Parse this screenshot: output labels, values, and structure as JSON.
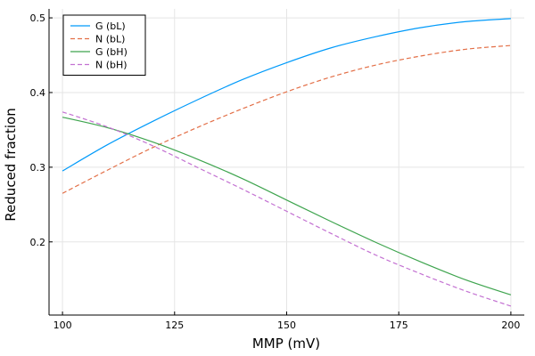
{
  "chart_data": {
    "type": "line",
    "title": "",
    "xlabel": "MMP (mV)",
    "ylabel": "Reduced fraction",
    "xlim": [
      97,
      203
    ],
    "ylim": [
      0.102,
      0.512
    ],
    "xticks": [
      100,
      125,
      150,
      175,
      200
    ],
    "yticks": [
      0.2,
      0.3,
      0.4,
      0.5
    ],
    "xtick_labels": [
      "100",
      "125",
      "150",
      "175",
      "200"
    ],
    "ytick_labels": [
      "0.2",
      "0.3",
      "0.4",
      "0.5"
    ],
    "grid": true,
    "legend_position": "top-left",
    "x": [
      100,
      110,
      120,
      130,
      140,
      150,
      160,
      170,
      180,
      190,
      200
    ],
    "series": [
      {
        "name": "G (bL)",
        "color": "#009AFA",
        "dash": "solid",
        "values": [
          0.295,
          0.33,
          0.361,
          0.39,
          0.417,
          0.44,
          0.46,
          0.475,
          0.487,
          0.495,
          0.499
        ]
      },
      {
        "name": "N (bL)",
        "color": "#E36F47",
        "dash": "dashed",
        "values": [
          0.265,
          0.296,
          0.326,
          0.353,
          0.378,
          0.401,
          0.421,
          0.437,
          0.449,
          0.458,
          0.463
        ]
      },
      {
        "name": "G (bH)",
        "color": "#3EA44E",
        "dash": "solid",
        "values": [
          0.367,
          0.353,
          0.334,
          0.311,
          0.285,
          0.256,
          0.227,
          0.199,
          0.173,
          0.149,
          0.129
        ]
      },
      {
        "name": "N (bH)",
        "color": "#C371D2",
        "dash": "dashed",
        "values": [
          0.374,
          0.354,
          0.329,
          0.3,
          0.271,
          0.241,
          0.211,
          0.182,
          0.157,
          0.134,
          0.114
        ]
      }
    ]
  }
}
